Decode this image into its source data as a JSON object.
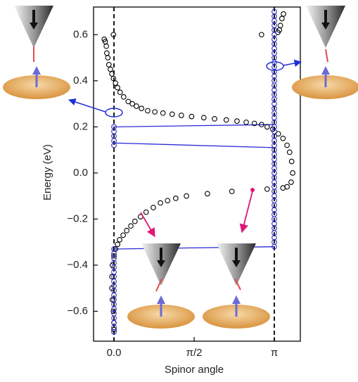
{
  "chart_data": {
    "type": "scatter",
    "xlabel": "Spinor angle",
    "ylabel": "Energy (eV)",
    "xlim": [
      -0.4,
      3.65
    ],
    "ylim": [
      -0.73,
      0.72
    ],
    "xticks": [
      {
        "value": 0,
        "label": "0.0"
      },
      {
        "value": 1.5708,
        "label": "π/2"
      },
      {
        "value": 3.1416,
        "label": "π"
      }
    ],
    "yticks": [
      {
        "value": -0.6,
        "label": "−0.6"
      },
      {
        "value": -0.4,
        "label": "−0.4"
      },
      {
        "value": -0.2,
        "label": "−0.2"
      },
      {
        "value": 0,
        "label": "0.0"
      },
      0.2,
      0.4,
      0.6
    ],
    "vlines": [
      0,
      3.14
    ],
    "series": [
      {
        "color": "#000000",
        "x": [
          -0.01,
          -0.19,
          -0.17,
          -0.15,
          -0.14,
          -0.12,
          -0.1,
          -0.07,
          -0.04,
          -0.01,
          0.03,
          0.07,
          0.12,
          0.19,
          0.28,
          0.36,
          0.44,
          0.54,
          0.66,
          0.8,
          0.96,
          1.14,
          1.32,
          1.52,
          1.76,
          1.97,
          2.2,
          2.41,
          2.59,
          2.75,
          2.89,
          3.0,
          3.11,
          3.22,
          3.31,
          3.39,
          3.44,
          3.48,
          3.5,
          3.47,
          3.39,
          3.31,
          2.89,
          3.21,
          3.24,
          3.26,
          3.29,
          3.32,
          3.0,
          2.31,
          1.83,
          1.42,
          1.21,
          1.05,
          0.91,
          0.77,
          0.63,
          0.52,
          0.41,
          0.33,
          0.25,
          0.18,
          0.11,
          0.07,
          0.03,
          0.0,
          -0.03,
          -0.04,
          -0.04,
          -0.03,
          -0.01,
          0,
          0
        ],
        "values": [
          0.6,
          0.58,
          0.57,
          0.55,
          0.52,
          0.5,
          0.47,
          0.45,
          0.43,
          0.41,
          0.39,
          0.37,
          0.35,
          0.33,
          0.31,
          0.3,
          0.29,
          0.28,
          0.27,
          0.265,
          0.26,
          0.255,
          0.25,
          0.245,
          0.24,
          0.235,
          0.23,
          0.225,
          0.22,
          0.215,
          0.21,
          0.2,
          0.19,
          0.17,
          0.15,
          0.12,
          0.09,
          0.05,
          0.0,
          -0.04,
          -0.06,
          -0.065,
          0.6,
          0.61,
          0.62,
          0.64,
          0.67,
          0.69,
          -0.07,
          -0.08,
          -0.09,
          -0.1,
          -0.11,
          -0.12,
          -0.13,
          -0.15,
          -0.17,
          -0.19,
          -0.21,
          -0.23,
          -0.25,
          -0.27,
          -0.29,
          -0.31,
          -0.33,
          -0.36,
          -0.4,
          -0.45,
          -0.5,
          -0.55,
          -0.6,
          -0.65,
          -0.68
        ]
      },
      {
        "color": "#2b2bbf",
        "x": [
          0,
          0,
          0,
          0,
          0
        ],
        "values": [
          0.12,
          0.14,
          0.16,
          0.18,
          0.2
        ]
      },
      {
        "color": "#2b2bbf",
        "x": [
          0,
          0,
          0,
          0,
          0,
          0,
          0,
          0,
          0,
          0,
          0,
          0,
          0,
          0,
          0,
          0,
          0,
          0,
          0
        ],
        "values": [
          -0.33,
          -0.35,
          -0.37,
          -0.39,
          -0.41,
          -0.43,
          -0.45,
          -0.47,
          -0.49,
          -0.51,
          -0.53,
          -0.55,
          -0.57,
          -0.59,
          -0.61,
          -0.63,
          -0.65,
          -0.67,
          -0.69
        ]
      },
      {
        "color": "#2b2bbf",
        "x": [
          3.14,
          3.14,
          3.14,
          3.14,
          3.14,
          3.14,
          3.14,
          3.14,
          3.14,
          3.14,
          3.14,
          3.14,
          3.14,
          3.14,
          3.14,
          3.14,
          3.14,
          3.14,
          3.14,
          3.14,
          3.14,
          3.14,
          3.14,
          3.14,
          3.14,
          3.14,
          3.14,
          3.14,
          3.14,
          3.14,
          3.14,
          3.14,
          3.14,
          3.14,
          3.14,
          3.14,
          3.14,
          3.14,
          3.14,
          3.14,
          3.14,
          3.14,
          3.14,
          3.14,
          3.14,
          3.14,
          3.14,
          3.14,
          3.14,
          3.14,
          3.14,
          3.14
        ],
        "values": [
          -0.32,
          -0.3,
          -0.28,
          -0.26,
          -0.24,
          -0.22,
          -0.2,
          -0.18,
          -0.16,
          -0.14,
          -0.12,
          -0.1,
          -0.08,
          -0.06,
          -0.04,
          -0.02,
          0.0,
          0.02,
          0.04,
          0.06,
          0.08,
          0.1,
          0.12,
          0.14,
          0.16,
          0.18,
          0.2,
          0.22,
          0.24,
          0.26,
          0.28,
          0.3,
          0.32,
          0.34,
          0.36,
          0.38,
          0.4,
          0.42,
          0.44,
          0.46,
          0.48,
          0.5,
          0.52,
          0.54,
          0.56,
          0.58,
          0.6,
          0.62,
          0.64,
          0.66,
          0.68,
          0.7
        ]
      }
    ],
    "segments": [
      {
        "color": "#2b2bd6",
        "x": [
          0,
          3.14
        ],
        "y": [
          0.2,
          0.21
        ]
      },
      {
        "color": "#2b2bd6",
        "x": [
          0,
          3.14
        ],
        "y": [
          0.13,
          0.11
        ]
      },
      {
        "color": "#2b2bd6",
        "x": [
          0,
          3.14
        ],
        "y": [
          -0.33,
          -0.32
        ]
      }
    ]
  }
}
